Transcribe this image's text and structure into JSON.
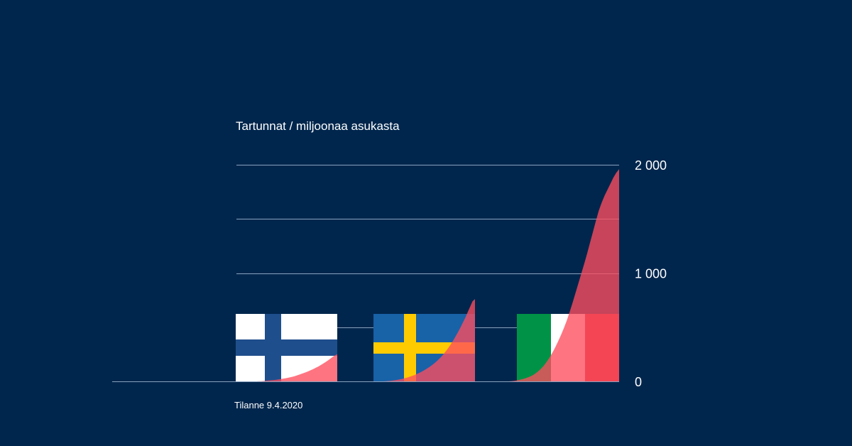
{
  "chart_data": {
    "type": "area",
    "title": "Tartunnat / miljoonaa asukasta",
    "ylim": [
      0,
      2000
    ],
    "yticks": [
      0,
      1000,
      2000
    ],
    "ytick_labels": [
      "0",
      "1 000",
      "2 000"
    ],
    "grid": true,
    "series": [
      {
        "flag": "Finland",
        "color": "#ff4d5e",
        "values": [
          0,
          0,
          1,
          2,
          4,
          6,
          8,
          10,
          12,
          14,
          17,
          20,
          24,
          28,
          32,
          37,
          42,
          48,
          55,
          62,
          70,
          78,
          86,
          95,
          105,
          115,
          126,
          137,
          150,
          163,
          177,
          192,
          208,
          224,
          240,
          252
        ]
      },
      {
        "flag": "Sweden",
        "color": "#ff4d5e",
        "values": [
          0,
          0,
          1,
          3,
          5,
          8,
          12,
          16,
          20,
          24,
          30,
          36,
          44,
          52,
          60,
          70,
          80,
          92,
          104,
          118,
          132,
          148,
          165,
          184,
          205,
          228,
          254,
          282,
          312,
          345,
          380,
          418,
          458,
          500,
          545,
          590,
          640,
          690,
          740,
          760
        ]
      },
      {
        "flag": "Italy",
        "color": "#ff4d5e",
        "values": [
          0,
          0,
          2,
          5,
          10,
          16,
          22,
          30,
          40,
          52,
          68,
          88,
          112,
          140,
          175,
          215,
          260,
          310,
          365,
          425,
          490,
          560,
          640,
          725,
          815,
          905,
          995,
          1085,
          1180,
          1280,
          1380,
          1480,
          1575,
          1650,
          1715,
          1770,
          1825,
          1880,
          1925,
          1960
        ]
      }
    ]
  },
  "footnote": "Tilanne  9.4.2020",
  "colors": {
    "background": "#00264d",
    "area": "#ff4d5e",
    "grid": "#8aa2bf",
    "finland_blue": "#1f4e8c",
    "sweden_blue": "#1862a8",
    "sweden_yellow": "#fecb00",
    "italy_green": "#009246",
    "italy_red": "#ce2b37"
  }
}
